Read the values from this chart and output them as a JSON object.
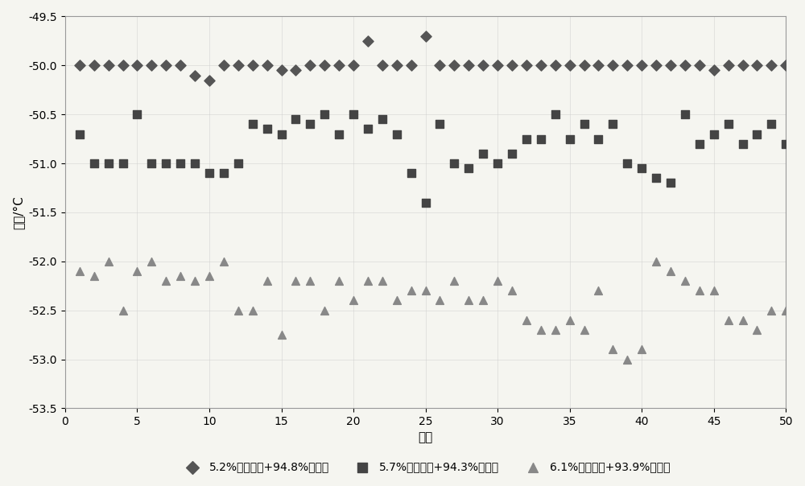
{
  "title": "",
  "xlabel": "次数",
  "ylabel": "温度/°C",
  "xlim": [
    0,
    50
  ],
  "ylim": [
    -53.5,
    -49.5
  ],
  "yticks": [
    -53.5,
    -53,
    -52.5,
    -52,
    -51.5,
    -51,
    -50.5,
    -50,
    -49.5
  ],
  "xticks": [
    0,
    5,
    10,
    15,
    20,
    25,
    30,
    35,
    40,
    45,
    50
  ],
  "series1_label": "5.2%膨胀石墨+94.8%正己醇",
  "series2_label": "5.7%膨胀石墨+94.3%正己醇",
  "series3_label": "6.1%膨胀石墨+93.9%正己醇",
  "series1_color": "#555555",
  "series2_color": "#444444",
  "series3_color": "#888888",
  "series1_marker": "D",
  "series2_marker": "s",
  "series3_marker": "^",
  "series1_x": [
    1,
    2,
    3,
    4,
    5,
    6,
    7,
    8,
    9,
    10,
    11,
    12,
    13,
    14,
    15,
    16,
    17,
    18,
    19,
    20,
    21,
    22,
    23,
    24,
    25,
    26,
    27,
    28,
    29,
    30,
    31,
    32,
    33,
    34,
    35,
    36,
    37,
    38,
    39,
    40,
    41,
    42,
    43,
    44,
    45,
    46,
    47,
    48,
    49,
    50
  ],
  "series1_y": [
    -50.0,
    -50.0,
    -50.0,
    -50.0,
    -50.0,
    -50.0,
    -50.0,
    -50.0,
    -50.1,
    -50.15,
    -50.0,
    -50.0,
    -50.0,
    -50.0,
    -50.05,
    -50.05,
    -50.0,
    -50.0,
    -50.0,
    -50.0,
    -49.75,
    -50.0,
    -50.0,
    -50.0,
    -49.7,
    -50.0,
    -50.0,
    -50.0,
    -50.0,
    -50.0,
    -50.0,
    -50.0,
    -50.0,
    -50.0,
    -50.0,
    -50.0,
    -50.0,
    -50.0,
    -50.0,
    -50.0,
    -50.0,
    -50.0,
    -50.0,
    -50.0,
    -50.05,
    -50.0,
    -50.0,
    -50.0,
    -50.0,
    -50.0
  ],
  "series2_x": [
    1,
    2,
    3,
    4,
    5,
    6,
    7,
    8,
    9,
    10,
    11,
    12,
    13,
    14,
    15,
    16,
    17,
    18,
    19,
    20,
    21,
    22,
    23,
    24,
    25,
    26,
    27,
    28,
    29,
    30,
    31,
    32,
    33,
    34,
    35,
    36,
    37,
    38,
    39,
    40,
    41,
    42,
    43,
    44,
    45,
    46,
    47,
    48,
    49,
    50
  ],
  "series2_y": [
    -50.7,
    -51.0,
    -51.0,
    -51.0,
    -50.5,
    -51.0,
    -51.0,
    -51.0,
    -51.0,
    -51.1,
    -51.1,
    -51.0,
    -50.6,
    -50.65,
    -50.7,
    -50.55,
    -50.6,
    -50.5,
    -50.7,
    -50.5,
    -50.65,
    -50.55,
    -50.7,
    -51.1,
    -51.4,
    -50.6,
    -51.0,
    -51.05,
    -50.9,
    -51.0,
    -50.9,
    -50.75,
    -50.75,
    -50.5,
    -50.75,
    -50.6,
    -50.75,
    -50.6,
    -51.0,
    -51.05,
    -51.15,
    -51.2,
    -50.5,
    -50.8,
    -50.7,
    -50.6,
    -50.8,
    -50.7,
    -50.6,
    -50.8
  ],
  "series3_x": [
    1,
    2,
    3,
    4,
    5,
    6,
    7,
    8,
    9,
    10,
    11,
    12,
    13,
    14,
    15,
    16,
    17,
    18,
    19,
    20,
    21,
    22,
    23,
    24,
    25,
    26,
    27,
    28,
    29,
    30,
    31,
    32,
    33,
    34,
    35,
    36,
    37,
    38,
    39,
    40,
    41,
    42,
    43,
    44,
    45,
    46,
    47,
    48,
    49,
    50
  ],
  "series3_y": [
    -52.1,
    -52.15,
    -52.0,
    -52.5,
    -52.1,
    -52.0,
    -52.2,
    -52.15,
    -52.2,
    -52.15,
    -52.0,
    -52.5,
    -52.5,
    -52.2,
    -52.75,
    -52.2,
    -52.2,
    -52.5,
    -52.2,
    -52.4,
    -52.2,
    -52.2,
    -52.4,
    -52.3,
    -52.3,
    -52.4,
    -52.2,
    -52.4,
    -52.4,
    -52.2,
    -52.3,
    -52.6,
    -52.7,
    -52.7,
    -52.6,
    -52.7,
    -52.3,
    -52.9,
    -53.0,
    -52.9,
    -52.0,
    -52.1,
    -52.2,
    -52.3,
    -52.3,
    -52.6,
    -52.6,
    -52.7,
    -52.5,
    -52.5
  ],
  "bg_color": "#f5f5f0",
  "plot_bg_color": "#f5f5f0"
}
